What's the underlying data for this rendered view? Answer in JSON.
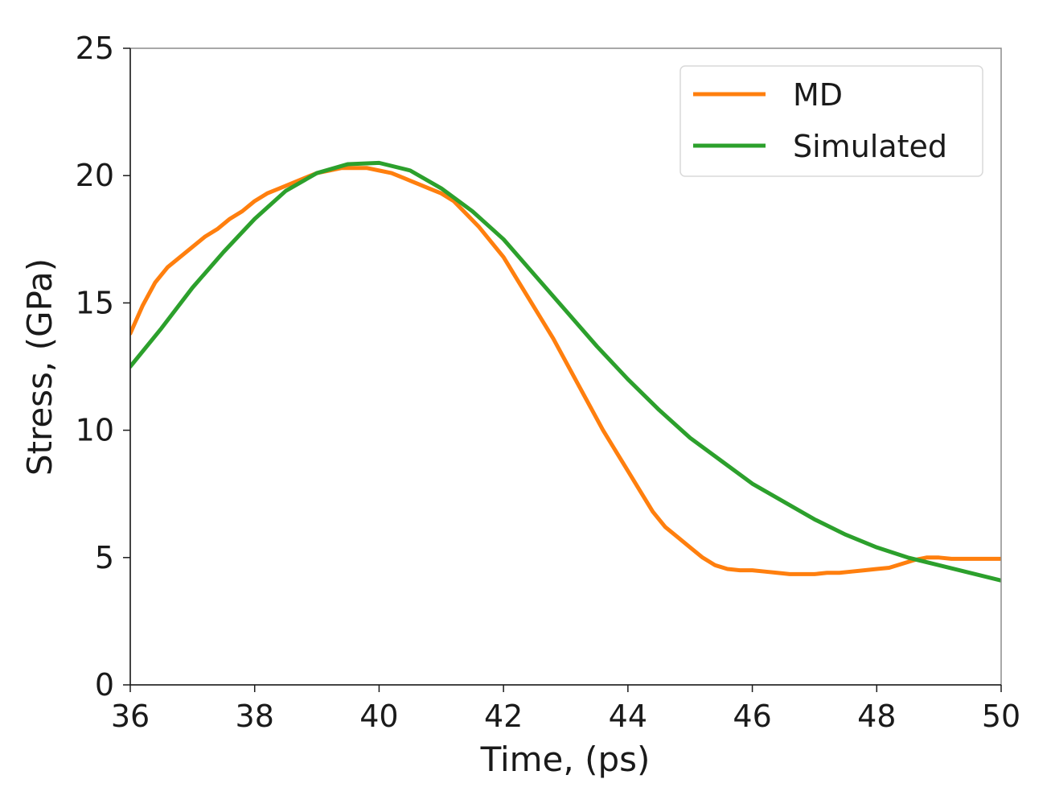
{
  "chart_data": {
    "type": "line",
    "title": "",
    "xlabel": "Time, (ps)",
    "ylabel": "Stress, (GPa)",
    "xlim": [
      36,
      50
    ],
    "ylim": [
      0,
      25
    ],
    "xticks": [
      36,
      38,
      40,
      42,
      44,
      46,
      48,
      50
    ],
    "yticks": [
      0,
      5,
      10,
      15,
      20,
      25
    ],
    "grid": false,
    "legend_position": "top-right",
    "series": [
      {
        "name": "MD",
        "color": "#ff7f0e",
        "x": [
          36.0,
          36.2,
          36.4,
          36.6,
          36.8,
          37.0,
          37.2,
          37.4,
          37.6,
          37.8,
          38.0,
          38.2,
          38.4,
          38.6,
          38.8,
          39.0,
          39.2,
          39.4,
          39.6,
          39.8,
          40.0,
          40.2,
          40.4,
          40.6,
          40.8,
          41.0,
          41.2,
          41.4,
          41.6,
          41.8,
          42.0,
          42.2,
          42.4,
          42.6,
          42.8,
          43.0,
          43.2,
          43.4,
          43.6,
          43.8,
          44.0,
          44.2,
          44.4,
          44.6,
          44.8,
          45.0,
          45.2,
          45.4,
          45.6,
          45.8,
          46.0,
          46.2,
          46.4,
          46.6,
          46.8,
          47.0,
          47.2,
          47.4,
          47.6,
          47.8,
          48.0,
          48.2,
          48.4,
          48.6,
          48.8,
          49.0,
          49.2,
          49.4,
          49.6,
          49.8,
          50.0
        ],
        "y": [
          13.8,
          14.9,
          15.8,
          16.4,
          16.8,
          17.2,
          17.6,
          17.9,
          18.3,
          18.6,
          19.0,
          19.3,
          19.5,
          19.7,
          19.9,
          20.1,
          20.2,
          20.3,
          20.3,
          20.3,
          20.2,
          20.1,
          19.9,
          19.7,
          19.5,
          19.3,
          19.0,
          18.5,
          18.0,
          17.4,
          16.8,
          16.0,
          15.2,
          14.4,
          13.6,
          12.7,
          11.8,
          10.9,
          10.0,
          9.2,
          8.4,
          7.6,
          6.8,
          6.2,
          5.8,
          5.4,
          5.0,
          4.7,
          4.55,
          4.5,
          4.5,
          4.45,
          4.4,
          4.35,
          4.35,
          4.35,
          4.4,
          4.4,
          4.45,
          4.5,
          4.55,
          4.6,
          4.75,
          4.9,
          5.0,
          5.0,
          4.95,
          4.95,
          4.95,
          4.95,
          4.95
        ]
      },
      {
        "name": "Simulated",
        "color": "#2ca02c",
        "x": [
          36.0,
          36.5,
          37.0,
          37.5,
          38.0,
          38.5,
          39.0,
          39.5,
          40.0,
          40.5,
          41.0,
          41.5,
          42.0,
          42.5,
          43.0,
          43.5,
          44.0,
          44.5,
          45.0,
          45.5,
          46.0,
          46.5,
          47.0,
          47.5,
          48.0,
          48.5,
          49.0,
          49.5,
          50.0
        ],
        "y": [
          12.5,
          14.0,
          15.6,
          17.0,
          18.3,
          19.4,
          20.1,
          20.45,
          20.5,
          20.2,
          19.5,
          18.6,
          17.5,
          16.1,
          14.7,
          13.3,
          12.0,
          10.8,
          9.7,
          8.8,
          7.9,
          7.2,
          6.5,
          5.9,
          5.4,
          5.0,
          4.7,
          4.4,
          4.1
        ]
      }
    ]
  }
}
